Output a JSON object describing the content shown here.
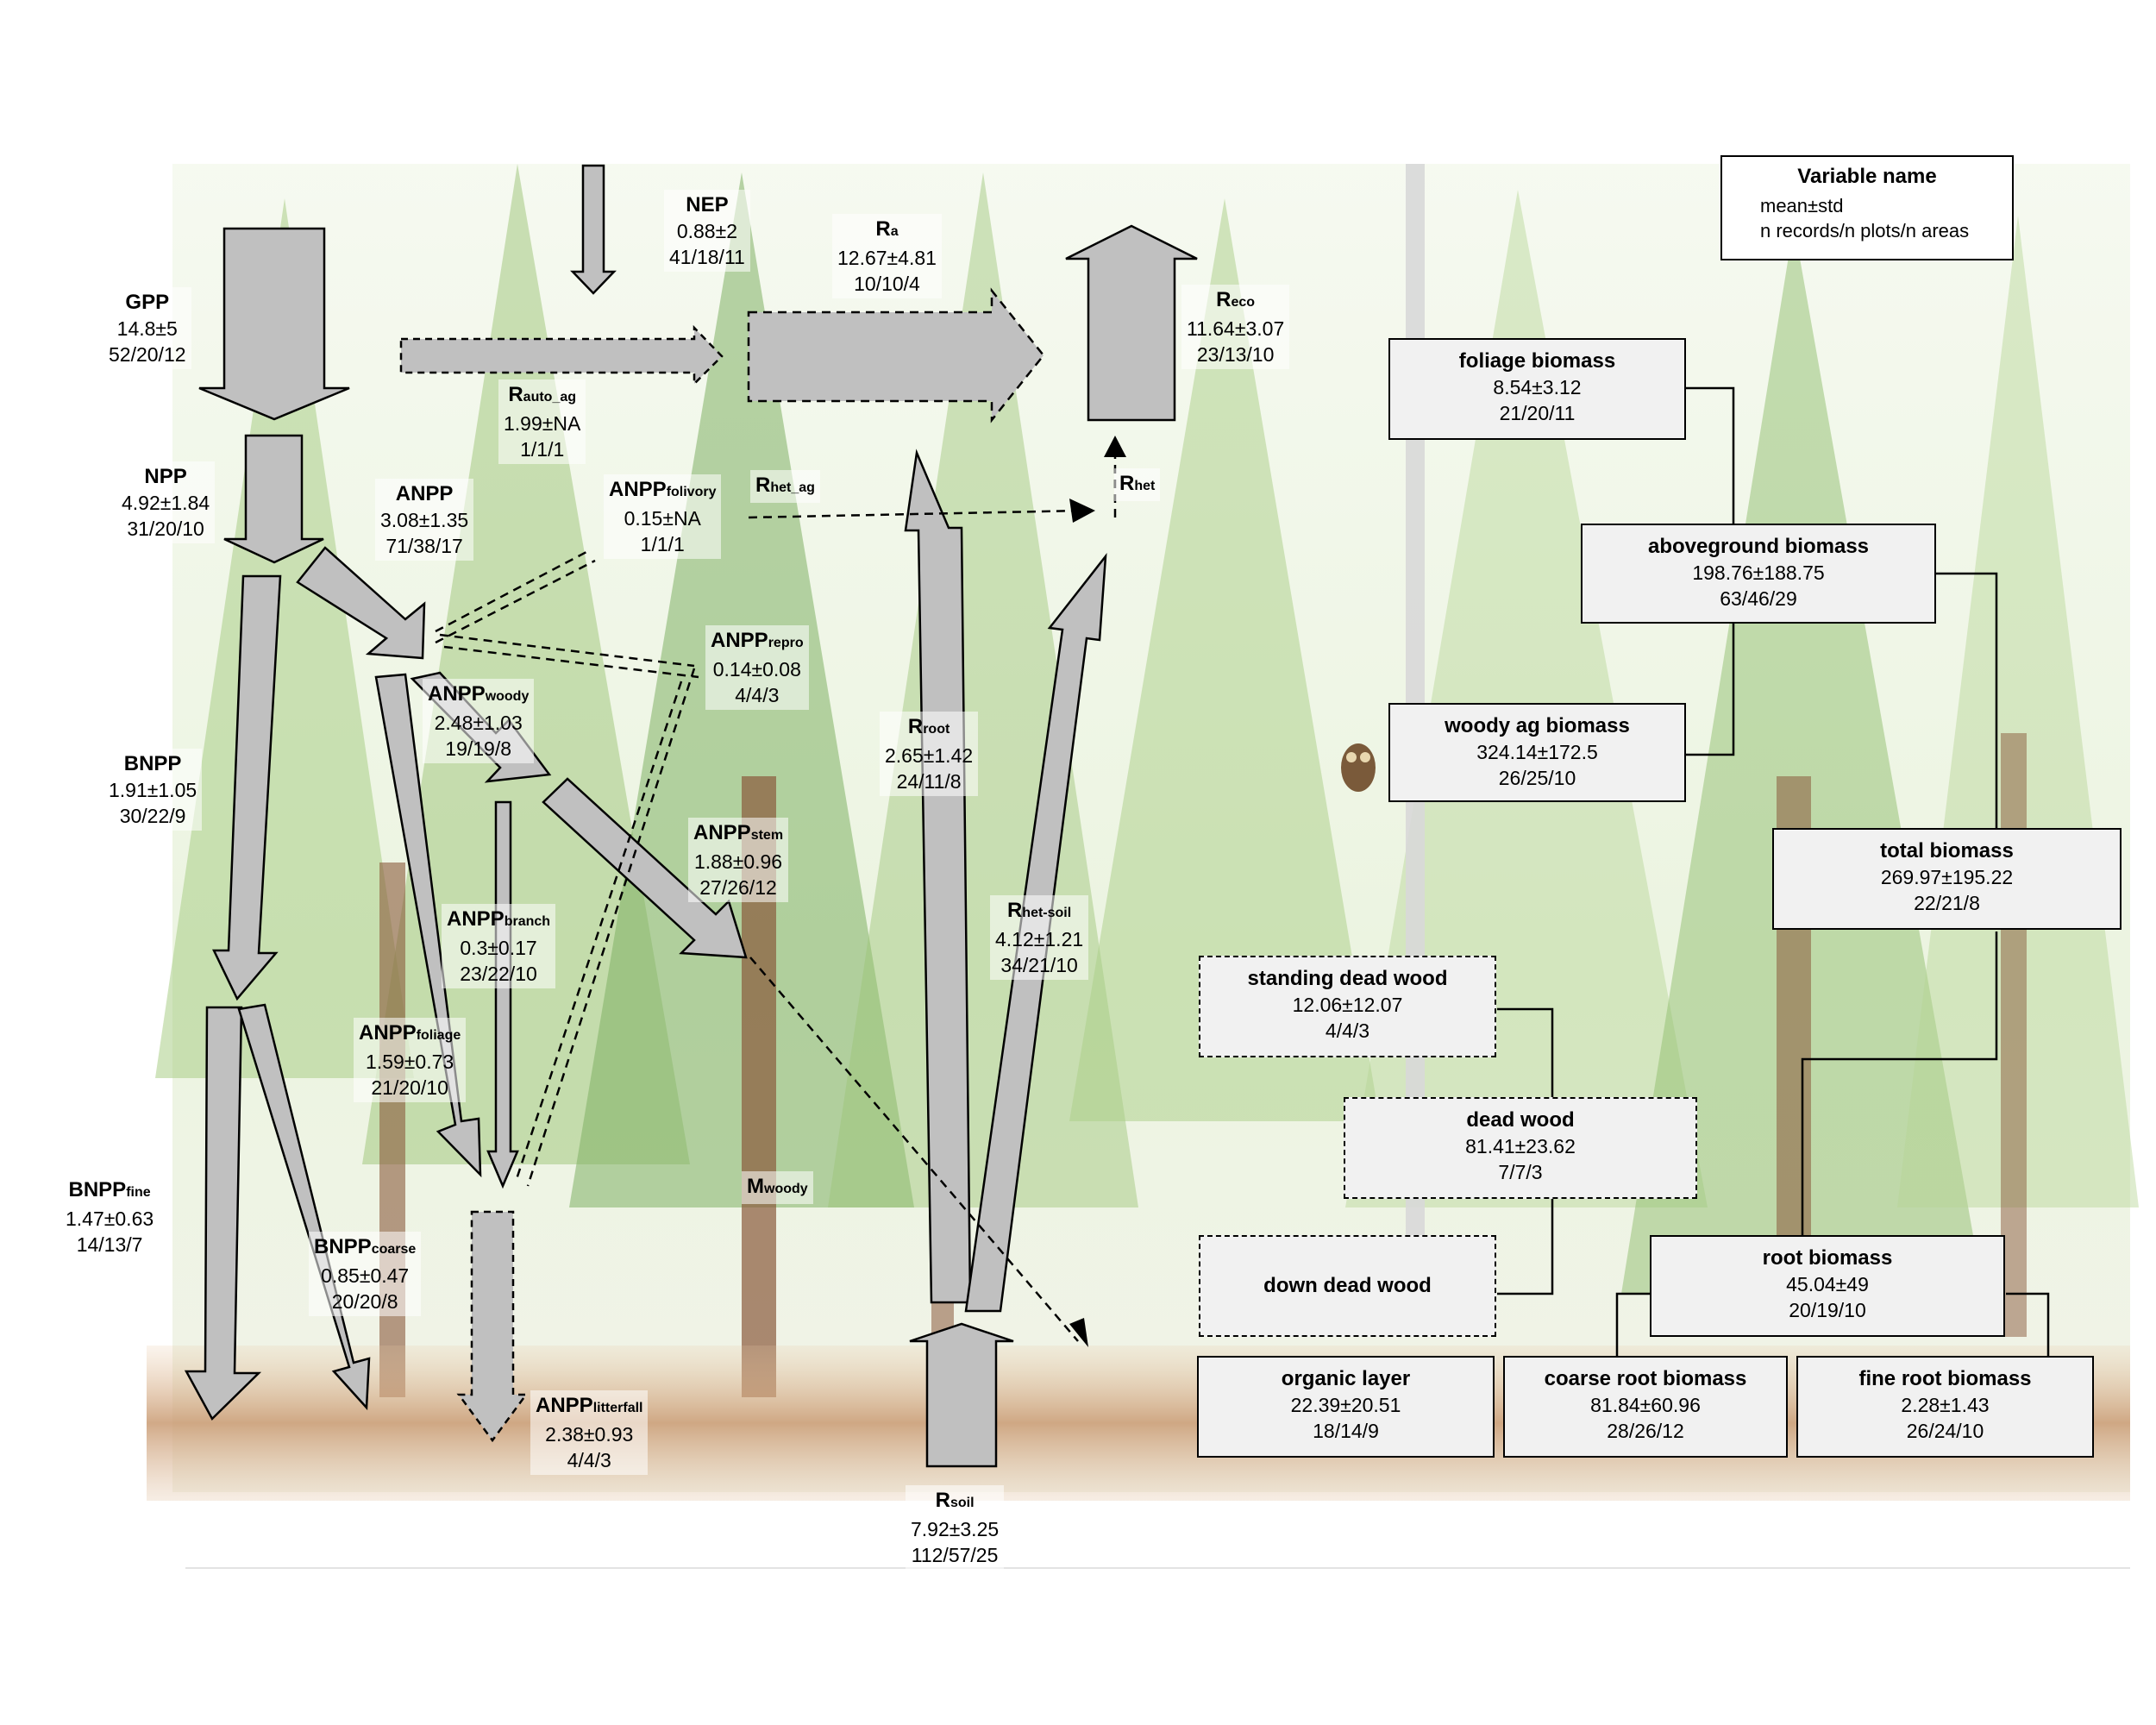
{
  "fluxes": {
    "gpp": {
      "name": "GPP",
      "sub": "",
      "mean": "14.8±5",
      "n": "52/20/12"
    },
    "npp": {
      "name": "NPP",
      "sub": "",
      "mean": "4.92±1.84",
      "n": "31/20/10"
    },
    "anpp": {
      "name": "ANPP",
      "sub": "",
      "mean": "3.08±1.35",
      "n": "71/38/17"
    },
    "bnpp": {
      "name": "BNPP",
      "sub": "",
      "mean": "1.91±1.05",
      "n": "30/22/9"
    },
    "bnpp_fine": {
      "name": "BNPP",
      "sub": "fine",
      "mean": "1.47±0.63",
      "n": "14/13/7"
    },
    "bnpp_coarse": {
      "name": "BNPP",
      "sub": "coarse",
      "mean": "0.85±0.47",
      "n": "20/20/8"
    },
    "nep": {
      "name": "NEP",
      "sub": "",
      "mean": "0.88±2",
      "n": "41/18/11"
    },
    "ra": {
      "name": "R",
      "sub": "a",
      "mean": "12.67±4.81",
      "n": "10/10/4"
    },
    "reco": {
      "name": "R",
      "sub": "eco",
      "mean": "11.64±3.07",
      "n": "23/13/10"
    },
    "rauto_ag": {
      "name": "R",
      "sub": "auto_ag",
      "mean": "1.99±NA",
      "n": "1/1/1"
    },
    "anpp_folivory": {
      "name": "ANPP",
      "sub": "folivory",
      "mean": "0.15±NA",
      "n": "1/1/1"
    },
    "rhet_ag": {
      "name": "R",
      "sub": "het_ag",
      "mean": "",
      "n": ""
    },
    "rhet": {
      "name": "R",
      "sub": "het",
      "mean": "",
      "n": ""
    },
    "anpp_repro": {
      "name": "ANPP",
      "sub": "repro",
      "mean": "0.14±0.08",
      "n": "4/4/3"
    },
    "anpp_woody": {
      "name": "ANPP",
      "sub": "woody",
      "mean": "2.48±1.03",
      "n": "19/19/8"
    },
    "anpp_stem": {
      "name": "ANPP",
      "sub": "stem",
      "mean": "1.88±0.96",
      "n": "27/26/12"
    },
    "anpp_branch": {
      "name": "ANPP",
      "sub": "branch",
      "mean": "0.3±0.17",
      "n": "23/22/10"
    },
    "anpp_foliage": {
      "name": "ANPP",
      "sub": "foliage",
      "mean": "1.59±0.73",
      "n": "21/20/10"
    },
    "anpp_litterfall": {
      "name": "ANPP",
      "sub": "litterfall",
      "mean": "2.38±0.93",
      "n": "4/4/3"
    },
    "rroot": {
      "name": "R",
      "sub": "root",
      "mean": "2.65±1.42",
      "n": "24/11/8"
    },
    "rhet_soil": {
      "name": "R",
      "sub": "het-soil",
      "mean": "4.12±1.21",
      "n": "34/21/10"
    },
    "m_woody": {
      "name": "M",
      "sub": "woody",
      "mean": "",
      "n": ""
    },
    "rsoil": {
      "name": "R",
      "sub": "soil",
      "mean": "7.92±3.25",
      "n": "112/57/25"
    }
  },
  "stocks": {
    "foliage_biomass": {
      "title": "foliage biomass",
      "mean": "8.54±3.12",
      "n": "21/20/11"
    },
    "aboveground_biomass": {
      "title": "aboveground biomass",
      "mean": "198.76±188.75",
      "n": "63/46/29"
    },
    "woody_ag_biomass": {
      "title": "woody ag biomass",
      "mean": "324.14±172.5",
      "n": "26/25/10"
    },
    "total_biomass": {
      "title": "total biomass",
      "mean": "269.97±195.22",
      "n": "22/21/8"
    },
    "standing_dead_wood": {
      "title": "standing dead wood",
      "mean": "12.06±12.07",
      "n": "4/4/3"
    },
    "dead_wood": {
      "title": "dead wood",
      "mean": "81.41±23.62",
      "n": "7/7/3"
    },
    "down_dead_wood": {
      "title": "down dead wood",
      "mean": "",
      "n": ""
    },
    "root_biomass": {
      "title": "root biomass",
      "mean": "45.04±49",
      "n": "20/19/10"
    },
    "organic_layer": {
      "title": "organic layer",
      "mean": "22.39±20.51",
      "n": "18/14/9"
    },
    "coarse_root_biomass": {
      "title": "coarse root biomass",
      "mean": "81.84±60.96",
      "n": "28/26/12"
    },
    "fine_root_biomass": {
      "title": "fine root biomass",
      "mean": "2.28±1.43",
      "n": "26/24/10"
    }
  },
  "legend": {
    "title": "Variable name",
    "line1": "mean±std",
    "line2": "n records/n plots/n areas"
  },
  "colors": {
    "arrow_fill": "#c0c0c0",
    "box_fill": "#f1f1f1",
    "tree_green": "#9ec27a",
    "trunk": "#8a5a3c",
    "soil": "#c9a07a"
  }
}
